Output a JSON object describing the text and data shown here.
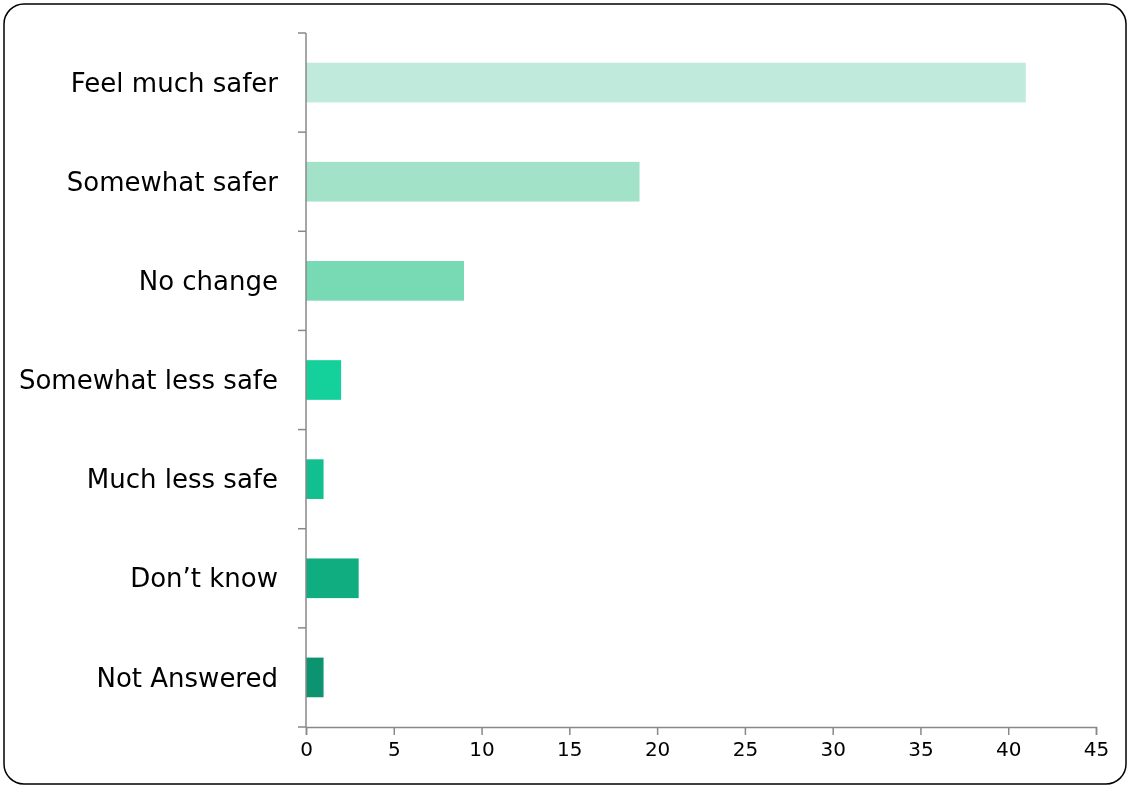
{
  "chart_data": {
    "type": "bar",
    "orientation": "horizontal",
    "categories": [
      "Feel much safer",
      "Somewhat safer",
      "No change",
      "Somewhat less safe",
      "Much less safe",
      "Don’t know",
      "Not Answered"
    ],
    "values": [
      41,
      19,
      9,
      2,
      1,
      3,
      1
    ],
    "colors": [
      "#c0eadb",
      "#a2e2c9",
      "#78dab5",
      "#14d09b",
      "#12c08f",
      "#10ad81",
      "#0c9470"
    ],
    "xlim": [
      0,
      45
    ],
    "xticks": [
      0,
      5,
      10,
      15,
      20,
      25,
      30,
      35,
      40,
      45
    ],
    "grid": false
  }
}
